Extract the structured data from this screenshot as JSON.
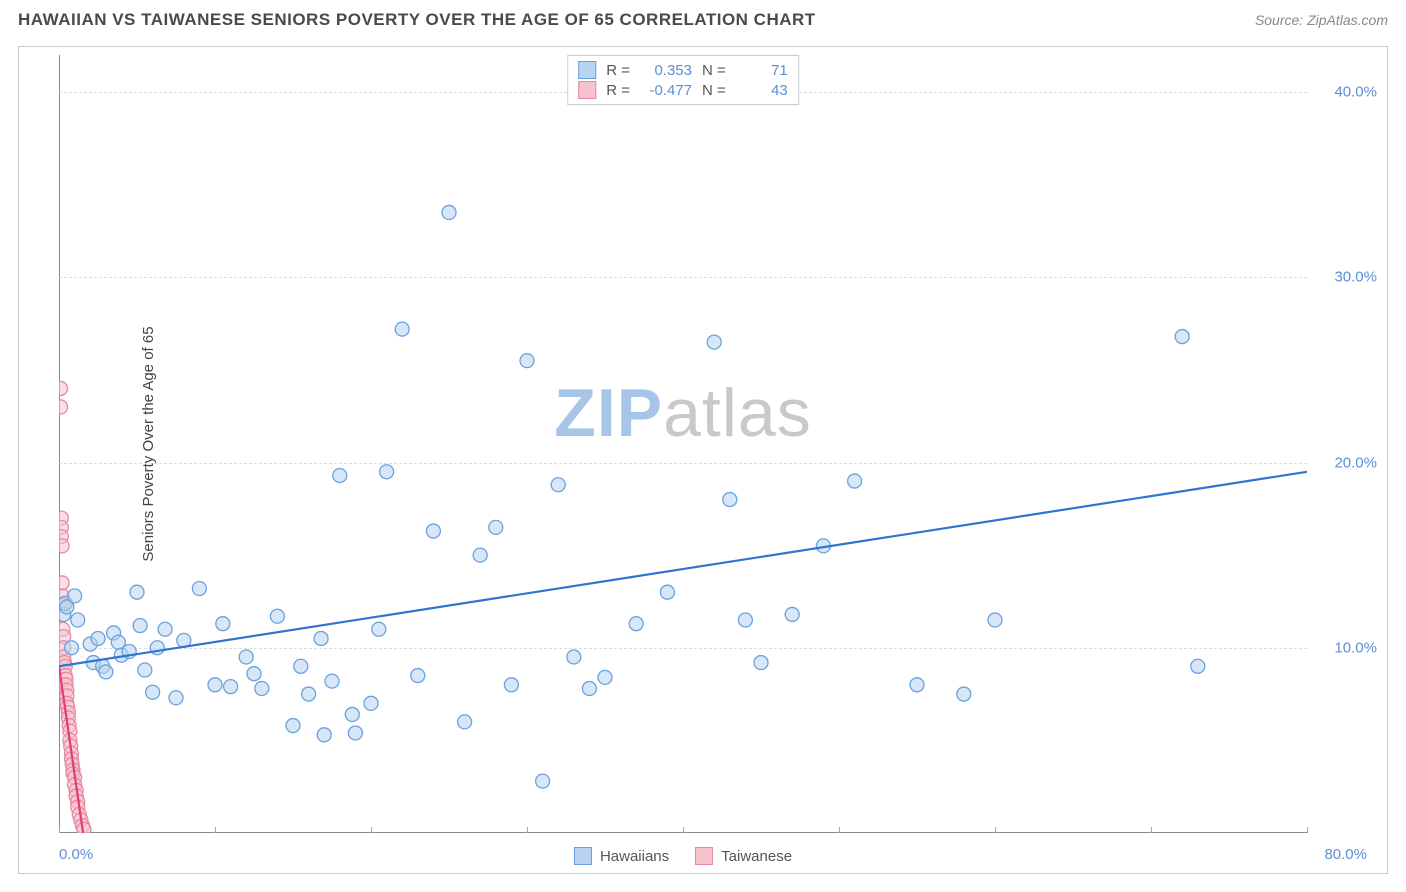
{
  "title": "HAWAIIAN VS TAIWANESE SENIORS POVERTY OVER THE AGE OF 65 CORRELATION CHART",
  "source": "Source: ZipAtlas.com",
  "watermark": {
    "prefix": "ZIP",
    "suffix": "atlas",
    "prefix_color": "#a7c5e8",
    "suffix_color": "#c9c9c9"
  },
  "chart": {
    "type": "scatter",
    "y_label": "Seniors Poverty Over the Age of 65",
    "xlim": [
      0,
      80
    ],
    "ylim": [
      0,
      42
    ],
    "x_ticks": [
      0,
      10,
      20,
      30,
      40,
      50,
      60,
      70,
      80
    ],
    "x_tick_labels": {
      "0": "0.0%",
      "80": "80.0%"
    },
    "y_grid": [
      10,
      20,
      30,
      40
    ],
    "y_tick_labels": {
      "10": "10.0%",
      "20": "20.0%",
      "30": "30.0%",
      "40": "40.0%"
    },
    "axis_label_color": "#5b8fd6",
    "grid_color": "#dddddd",
    "background_color": "#ffffff"
  },
  "series": {
    "hawaiians": {
      "label": "Hawaiians",
      "fill": "#b8d4f0",
      "stroke": "#6aa1de",
      "fill_opacity": 0.55,
      "marker_radius": 7,
      "trend": {
        "x1": 0,
        "y1": 9.0,
        "x2": 80,
        "y2": 19.5,
        "stroke": "#2e75d0",
        "width": 2.2
      },
      "R": "0.353",
      "N": "71",
      "points": [
        [
          0.3,
          11.8
        ],
        [
          0.4,
          12.4
        ],
        [
          0.5,
          12.2
        ],
        [
          0.8,
          10.0
        ],
        [
          1.0,
          12.8
        ],
        [
          1.2,
          11.5
        ],
        [
          2.0,
          10.2
        ],
        [
          2.2,
          9.2
        ],
        [
          2.5,
          10.5
        ],
        [
          2.8,
          9.0
        ],
        [
          3.0,
          8.7
        ],
        [
          3.5,
          10.8
        ],
        [
          3.8,
          10.3
        ],
        [
          4.0,
          9.6
        ],
        [
          4.5,
          9.8
        ],
        [
          5.0,
          13.0
        ],
        [
          5.2,
          11.2
        ],
        [
          5.5,
          8.8
        ],
        [
          6.0,
          7.6
        ],
        [
          6.3,
          10.0
        ],
        [
          6.8,
          11.0
        ],
        [
          7.5,
          7.3
        ],
        [
          8.0,
          10.4
        ],
        [
          9.0,
          13.2
        ],
        [
          10.0,
          8.0
        ],
        [
          10.5,
          11.3
        ],
        [
          11.0,
          7.9
        ],
        [
          12.0,
          9.5
        ],
        [
          12.5,
          8.6
        ],
        [
          13.0,
          7.8
        ],
        [
          14.0,
          11.7
        ],
        [
          15.0,
          5.8
        ],
        [
          15.5,
          9.0
        ],
        [
          16.0,
          7.5
        ],
        [
          16.8,
          10.5
        ],
        [
          17.0,
          5.3
        ],
        [
          17.5,
          8.2
        ],
        [
          18.0,
          19.3
        ],
        [
          18.8,
          6.4
        ],
        [
          19.0,
          5.4
        ],
        [
          20.0,
          7.0
        ],
        [
          20.5,
          11.0
        ],
        [
          21.0,
          19.5
        ],
        [
          22.0,
          27.2
        ],
        [
          23.0,
          8.5
        ],
        [
          24.0,
          16.3
        ],
        [
          25.0,
          33.5
        ],
        [
          26.0,
          6.0
        ],
        [
          27.0,
          15.0
        ],
        [
          28.0,
          16.5
        ],
        [
          29.0,
          8.0
        ],
        [
          30.0,
          25.5
        ],
        [
          31.0,
          2.8
        ],
        [
          32.0,
          18.8
        ],
        [
          33.0,
          9.5
        ],
        [
          34.0,
          7.8
        ],
        [
          35.0,
          8.4
        ],
        [
          37.0,
          11.3
        ],
        [
          39.0,
          13.0
        ],
        [
          42.0,
          26.5
        ],
        [
          43.0,
          18.0
        ],
        [
          44.0,
          11.5
        ],
        [
          45.0,
          9.2
        ],
        [
          47.0,
          11.8
        ],
        [
          49.0,
          15.5
        ],
        [
          51.0,
          19.0
        ],
        [
          55.0,
          8.0
        ],
        [
          58.0,
          7.5
        ],
        [
          60.0,
          11.5
        ],
        [
          72.0,
          26.8
        ],
        [
          73.0,
          9.0
        ]
      ]
    },
    "taiwanese": {
      "label": "Taiwanese",
      "fill": "#f5c2cd",
      "stroke": "#e788a0",
      "fill_opacity": 0.55,
      "marker_radius": 7,
      "trend": {
        "x1": 0,
        "y1": 9.0,
        "x2": 2.4,
        "y2": -5,
        "stroke": "#e23d6e",
        "width": 2.2
      },
      "R": "-0.477",
      "N": "43",
      "points": [
        [
          0.1,
          24.0
        ],
        [
          0.1,
          23.0
        ],
        [
          0.15,
          17.0
        ],
        [
          0.15,
          16.5
        ],
        [
          0.15,
          16.0
        ],
        [
          0.2,
          15.5
        ],
        [
          0.2,
          13.5
        ],
        [
          0.2,
          12.8
        ],
        [
          0.25,
          12.3
        ],
        [
          0.25,
          11.0
        ],
        [
          0.3,
          10.6
        ],
        [
          0.3,
          10.0
        ],
        [
          0.3,
          9.5
        ],
        [
          0.35,
          9.2
        ],
        [
          0.4,
          9.0
        ],
        [
          0.4,
          8.5
        ],
        [
          0.45,
          8.3
        ],
        [
          0.45,
          8.0
        ],
        [
          0.5,
          7.7
        ],
        [
          0.5,
          7.4
        ],
        [
          0.5,
          7.0
        ],
        [
          0.55,
          6.8
        ],
        [
          0.6,
          6.5
        ],
        [
          0.6,
          6.2
        ],
        [
          0.65,
          5.8
        ],
        [
          0.7,
          5.5
        ],
        [
          0.7,
          5.0
        ],
        [
          0.75,
          4.7
        ],
        [
          0.8,
          4.3
        ],
        [
          0.8,
          4.0
        ],
        [
          0.85,
          3.7
        ],
        [
          0.9,
          3.4
        ],
        [
          0.9,
          3.2
        ],
        [
          1.0,
          3.0
        ],
        [
          1.0,
          2.6
        ],
        [
          1.1,
          2.3
        ],
        [
          1.1,
          2.0
        ],
        [
          1.2,
          1.7
        ],
        [
          1.2,
          1.4
        ],
        [
          1.3,
          1.0
        ],
        [
          1.4,
          0.7
        ],
        [
          1.5,
          0.4
        ],
        [
          1.6,
          0.2
        ]
      ]
    }
  },
  "legend_top": [
    {
      "swatch_fill": "#b8d4f0",
      "swatch_stroke": "#6aa1de",
      "r_label": "R =",
      "r_value": "0.353",
      "n_label": "N =",
      "n_value": "71"
    },
    {
      "swatch_fill": "#f5c2cd",
      "swatch_stroke": "#e788a0",
      "r_label": "R =",
      "r_value": "-0.477",
      "n_label": "N =",
      "n_value": "43"
    }
  ],
  "legend_bottom": [
    {
      "swatch_fill": "#b8d4f0",
      "swatch_stroke": "#6aa1de",
      "label": "Hawaiians"
    },
    {
      "swatch_fill": "#f5c2cd",
      "swatch_stroke": "#e788a0",
      "label": "Taiwanese"
    }
  ]
}
